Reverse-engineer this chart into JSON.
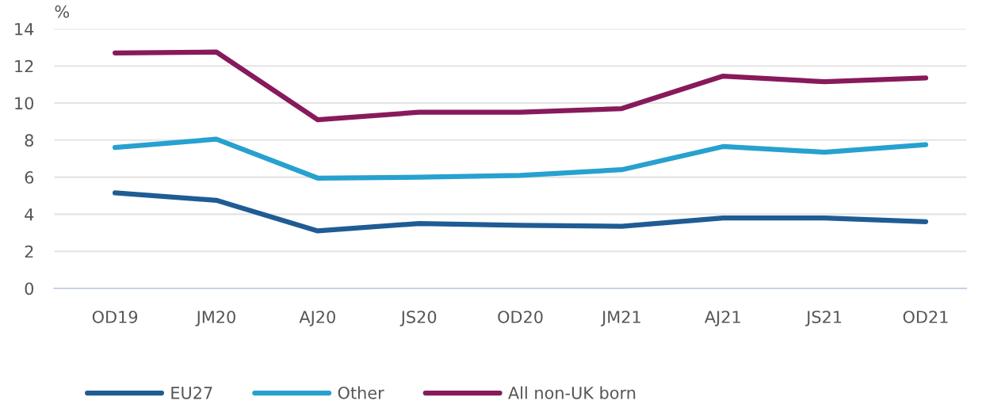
{
  "chart_data": {
    "type": "line",
    "ylabel": "%",
    "categories": [
      "OD19",
      "JM20",
      "AJ20",
      "JS20",
      "OD20",
      "JM21",
      "AJ21",
      "JS21",
      "OD21"
    ],
    "series": [
      {
        "name": "EU27",
        "color": "#1f5c94",
        "values": [
          5.15,
          4.75,
          3.1,
          3.5,
          3.4,
          3.35,
          3.8,
          3.8,
          3.6
        ]
      },
      {
        "name": "Other",
        "color": "#27a1cf",
        "values": [
          7.6,
          8.05,
          5.95,
          6.0,
          6.1,
          6.4,
          7.65,
          7.35,
          7.75
        ]
      },
      {
        "name": "All non-UK born",
        "color": "#871a5b",
        "values": [
          12.7,
          12.75,
          9.1,
          9.5,
          9.5,
          9.7,
          11.45,
          11.15,
          11.35
        ]
      }
    ],
    "ylim": [
      0,
      14
    ],
    "yticks": [
      0,
      2,
      4,
      6,
      8,
      10,
      12,
      14
    ],
    "grid": "y",
    "legend": "bottom",
    "marker": "none",
    "line_style": "solid"
  }
}
